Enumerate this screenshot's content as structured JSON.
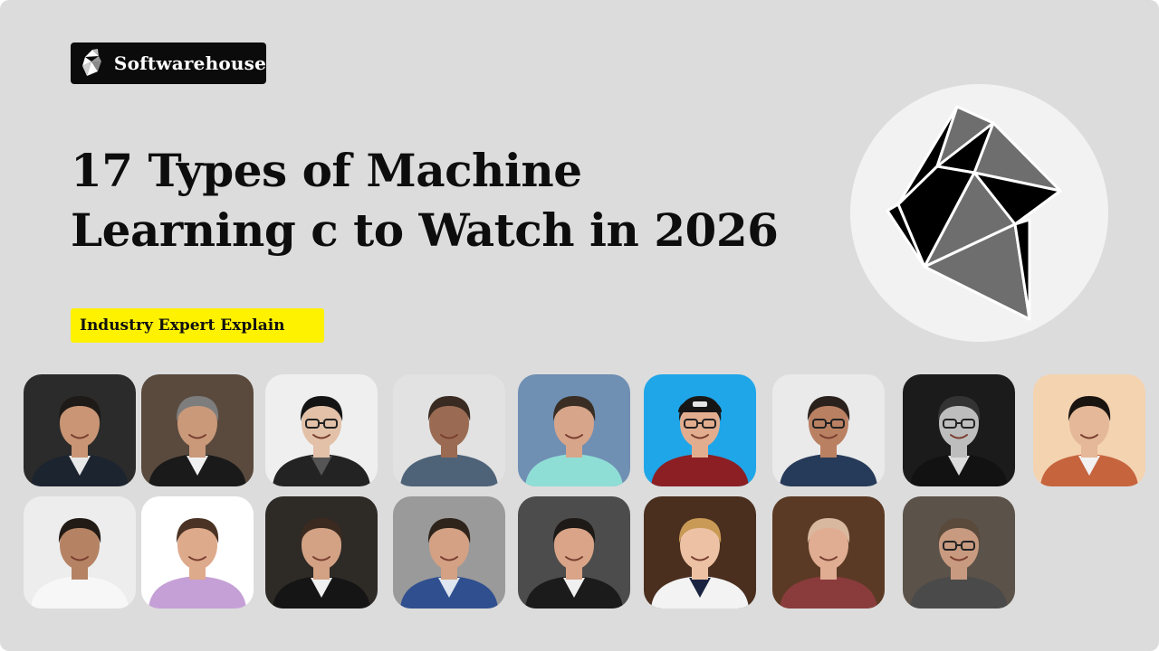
{
  "brand": {
    "name": "Softwarehouse",
    "icon": "softwarehouse-logo-icon"
  },
  "title": {
    "line1": "17 Types of Machine",
    "line2": "Learning c to Watch in 2026"
  },
  "tag": {
    "label": "Industry Expert Explain",
    "color": "#fff200"
  },
  "colors": {
    "background": "#dcdcdc",
    "brand_bg": "#0b0b0b",
    "logo_circle": "#f2f2f2",
    "logo_dark": "#000000",
    "logo_gray": "#6e6e6e"
  },
  "experts": [
    {
      "bg": "#2b2b2b",
      "skin": "#c99574",
      "hair": "#1e1a17",
      "shirt": "#1c2430",
      "collar": "#e8e8e8",
      "glasses": false,
      "hat": false
    },
    {
      "bg": "#5a4a3e",
      "skin": "#c9997a",
      "hair": "#7d7d7d",
      "shirt": "#1a1a1a",
      "collar": "#f0f0f0",
      "glasses": false,
      "hat": false
    },
    {
      "bg": "#efefef",
      "skin": "#e2c1a8",
      "hair": "#141414",
      "shirt": "#232323",
      "collar": "#555555",
      "glasses": true,
      "hat": false
    },
    {
      "bg": "#e2e2e2",
      "skin": "#9a6b52",
      "hair": "#3a2b22",
      "shirt": "#4e6278",
      "collar": "#4e6278",
      "glasses": false,
      "hat": false
    },
    {
      "bg": "#6f8fb3",
      "skin": "#d7a58a",
      "hair": "#3a2e24",
      "shirt": "#8fded6",
      "collar": "#8fded6",
      "glasses": false,
      "hat": false
    },
    {
      "bg": "#1fa6e8",
      "skin": "#e2ad8f",
      "hair": "#1a1a1a",
      "shirt": "#8c1f24",
      "collar": "#8c1f24",
      "glasses": true,
      "hat": true
    },
    {
      "bg": "#eaeaea",
      "skin": "#b98062",
      "hair": "#2a211c",
      "shirt": "#263a59",
      "collar": "#263a59",
      "glasses": true,
      "hat": false
    },
    {
      "bg": "#1b1b1b",
      "skin": "#bdbdbd",
      "hair": "#333333",
      "shirt": "#121212",
      "collar": "#dcdcdc",
      "glasses": true,
      "hat": false
    },
    {
      "bg": "#f4d3b0",
      "skin": "#e4b898",
      "hair": "#1a1411",
      "shirt": "#c6643e",
      "collar": "#f2f2f2",
      "glasses": false,
      "hat": false
    },
    {
      "bg": "#ededed",
      "skin": "#b58364",
      "hair": "#221a15",
      "shirt": "#f7f7f7",
      "collar": "#f7f7f7",
      "glasses": false,
      "hat": false
    },
    {
      "bg": "#ffffff",
      "skin": "#deaa8c",
      "hair": "#4a3324",
      "shirt": "#c5a0d6",
      "collar": "#c5a0d6",
      "glasses": false,
      "hat": false
    },
    {
      "bg": "#2e2a26",
      "skin": "#d3a284",
      "hair": "#3a2a20",
      "shirt": "#151515",
      "collar": "#f0f0f0",
      "glasses": false,
      "hat": false
    },
    {
      "bg": "#9a9a9a",
      "skin": "#d4a184",
      "hair": "#2f241c",
      "shirt": "#2f4f8f",
      "collar": "#dfe6f0",
      "glasses": false,
      "hat": false
    },
    {
      "bg": "#4c4c4c",
      "skin": "#d9a487",
      "hair": "#1d1a18",
      "shirt": "#1b1b1b",
      "collar": "#f0f0f0",
      "glasses": false,
      "hat": false
    },
    {
      "bg": "#4a2e1e",
      "skin": "#edc2a4",
      "hair": "#c89a55",
      "shirt": "#f3f3f3",
      "collar": "#1a2440",
      "glasses": false,
      "hat": false
    },
    {
      "bg": "#5a3a24",
      "skin": "#e0ad92",
      "hair": "#d9b8a0",
      "shirt": "#8a3c3c",
      "collar": "#8a3c3c",
      "glasses": false,
      "hat": false
    },
    {
      "bg": "#5b5249",
      "skin": "#c89a80",
      "hair": "#5a4a3c",
      "shirt": "#4a4a4a",
      "collar": "#4a4a4a",
      "glasses": true,
      "hat": false
    }
  ]
}
